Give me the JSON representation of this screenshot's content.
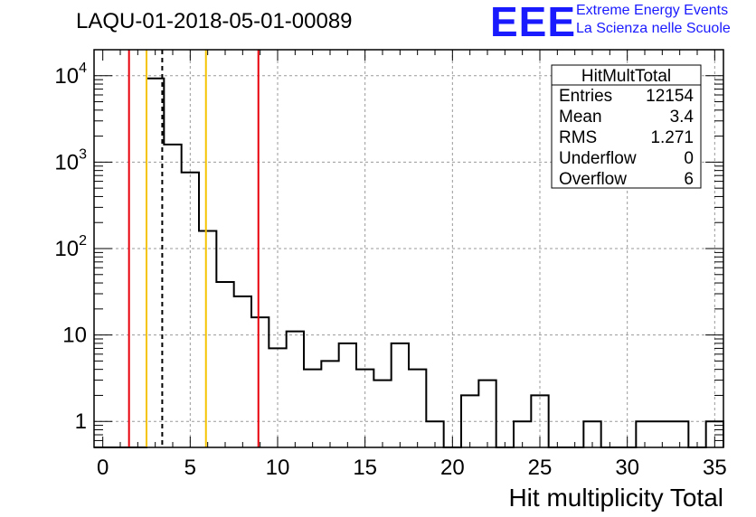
{
  "page": {
    "title": "LAQU-01-2018-05-01-00089",
    "logo": {
      "mark": "EEE",
      "line1": "Extreme Energy Events",
      "line2": "La Scienza nelle Scuole",
      "color": "#1a1aff"
    }
  },
  "stats_box": {
    "name": "HitMultTotal",
    "rows": [
      {
        "label": "Entries",
        "value": "12154"
      },
      {
        "label": "Mean",
        "value": "3.4"
      },
      {
        "label": "RMS",
        "value": "1.271"
      },
      {
        "label": "Underflow",
        "value": "0"
      },
      {
        "label": "Overflow",
        "value": "6"
      }
    ]
  },
  "chart_data": {
    "type": "histogram",
    "title": "LAQU-01-2018-05-01-00089",
    "xlabel": "Hit multiplicity Total",
    "ylabel": "",
    "xlim": [
      -0.5,
      35.5
    ],
    "ylim": [
      0.5,
      20000
    ],
    "yscale": "log",
    "grid": true,
    "bin_width": 1,
    "x_ticks": [
      0,
      5,
      10,
      15,
      20,
      25,
      30,
      35
    ],
    "x_tick_labels": [
      "0",
      "5",
      "10",
      "15",
      "20",
      "25",
      "30",
      "35"
    ],
    "y_ticks": [
      1,
      10,
      100,
      1000,
      10000
    ],
    "y_tick_labels": [
      "1",
      "10",
      "10^2",
      "10^3",
      "10^4"
    ],
    "bins": [
      {
        "x": 0,
        "count": 0
      },
      {
        "x": 1,
        "count": 0
      },
      {
        "x": 2,
        "count": 0
      },
      {
        "x": 3,
        "count": 9300
      },
      {
        "x": 4,
        "count": 1600
      },
      {
        "x": 5,
        "count": 760
      },
      {
        "x": 6,
        "count": 160
      },
      {
        "x": 7,
        "count": 41
      },
      {
        "x": 8,
        "count": 28
      },
      {
        "x": 9,
        "count": 16
      },
      {
        "x": 10,
        "count": 7
      },
      {
        "x": 11,
        "count": 11
      },
      {
        "x": 12,
        "count": 4
      },
      {
        "x": 13,
        "count": 5
      },
      {
        "x": 14,
        "count": 8
      },
      {
        "x": 15,
        "count": 4
      },
      {
        "x": 16,
        "count": 3
      },
      {
        "x": 17,
        "count": 8
      },
      {
        "x": 18,
        "count": 4
      },
      {
        "x": 19,
        "count": 1
      },
      {
        "x": 20,
        "count": 0
      },
      {
        "x": 21,
        "count": 2
      },
      {
        "x": 22,
        "count": 3
      },
      {
        "x": 23,
        "count": 0
      },
      {
        "x": 24,
        "count": 1
      },
      {
        "x": 25,
        "count": 2
      },
      {
        "x": 26,
        "count": 0
      },
      {
        "x": 27,
        "count": 0
      },
      {
        "x": 28,
        "count": 1
      },
      {
        "x": 29,
        "count": 0
      },
      {
        "x": 30,
        "count": 0
      },
      {
        "x": 31,
        "count": 1
      },
      {
        "x": 32,
        "count": 1
      },
      {
        "x": 33,
        "count": 1
      },
      {
        "x": 34,
        "count": 0
      },
      {
        "x": 35,
        "count": 1
      }
    ],
    "vertical_lines": [
      {
        "x": 1.5,
        "color": "#e8000b",
        "style": "solid"
      },
      {
        "x": 2.5,
        "color": "#f5c400",
        "style": "solid"
      },
      {
        "x": 3.4,
        "color": "#000000",
        "style": "dashed"
      },
      {
        "x": 5.9,
        "color": "#f5c400",
        "style": "solid"
      },
      {
        "x": 8.9,
        "color": "#e8000b",
        "style": "solid"
      }
    ]
  }
}
